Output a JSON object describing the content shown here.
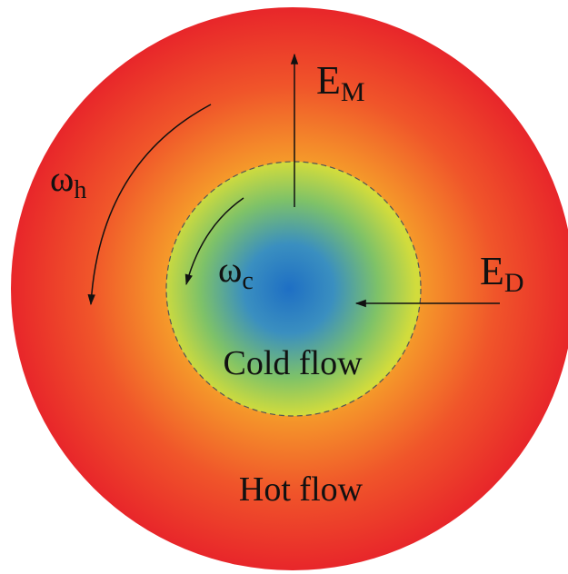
{
  "labels": {
    "e_m": "E",
    "e_m_sub": "M",
    "e_d": "E",
    "e_d_sub": "D",
    "omega_h": "ω",
    "omega_h_sub": "h",
    "omega_c": "ω",
    "omega_c_sub": "c",
    "cold_flow": "Cold flow",
    "hot_flow": "Hot flow"
  },
  "colors": {
    "hot_outer": "#e8262a",
    "hot_mid": "#f0552a",
    "hot_inner": "#f59a2a",
    "cold_edge": "#d2dc3c",
    "cold_mid": "#7ec268",
    "cold_center": "#1e6fc4",
    "boundary": "#555555",
    "arrow": "#111111"
  },
  "icons": {
    "e_m_arrow": "arrow-up-icon",
    "e_d_arrow": "arrow-left-icon",
    "omega_h_arrow": "curved-arrow-counterclockwise-icon",
    "omega_c_arrow": "curved-arrow-counterclockwise-icon"
  }
}
